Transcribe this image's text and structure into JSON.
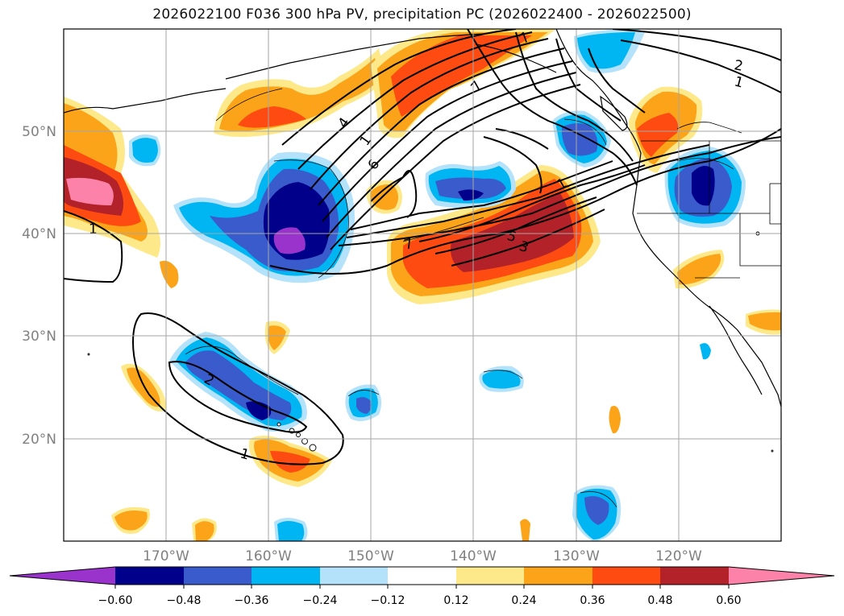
{
  "title": "2026022100 F036 300 hPa PV, precipitation PC (2026022400 - 2026022500)",
  "map": {
    "lon_range": [
      -180,
      -110
    ],
    "lat_range": [
      10,
      60
    ],
    "lat_labels": [
      "50°N",
      "40°N",
      "30°N",
      "20°N"
    ],
    "lon_labels": [
      "170°W",
      "160°W",
      "150°W",
      "140°W",
      "130°W",
      "120°W"
    ],
    "contour_labels": [
      "1",
      "4",
      "6",
      "7",
      "1",
      "2",
      "1",
      "7",
      "7",
      "5",
      "3",
      "1",
      "2",
      "1"
    ]
  },
  "colorbar": {
    "ticks": [
      "−0.60",
      "−0.48",
      "−0.36",
      "−0.24",
      "−0.12",
      "0.12",
      "0.24",
      "0.36",
      "0.48",
      "0.60"
    ],
    "colors": [
      "#9933cc",
      "#00008b",
      "#3a5bcc",
      "#00b6f2",
      "#b3e2fa",
      "#ffffff",
      "#fde98a",
      "#fba41a",
      "#fd4b11",
      "#b22228",
      "#fd82aa"
    ]
  }
}
